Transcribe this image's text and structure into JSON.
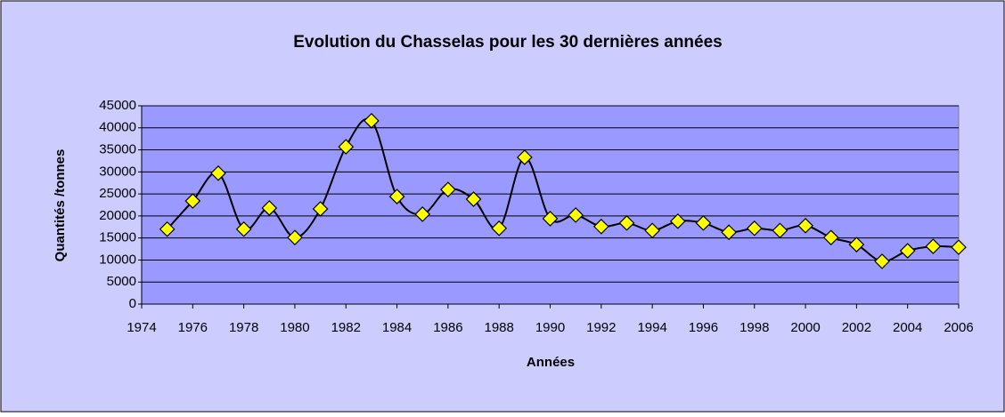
{
  "chart_data": {
    "type": "line",
    "title": "Evolution du Chasselas pour les 30 dernières années",
    "xlabel": "Années",
    "ylabel": "Quantités /tonnes",
    "x": [
      1975,
      1976,
      1977,
      1978,
      1979,
      1980,
      1981,
      1982,
      1983,
      1984,
      1985,
      1986,
      1987,
      1988,
      1989,
      1990,
      1991,
      1992,
      1993,
      1994,
      1995,
      1996,
      1997,
      1998,
      1999,
      2000,
      2001,
      2002,
      2003,
      2004,
      2005,
      2006
    ],
    "series": [
      {
        "name": "Quantités",
        "color": "#000000",
        "marker_color": "#ffff00",
        "values": [
          17000,
          23400,
          29700,
          17000,
          21800,
          15100,
          21600,
          35700,
          41600,
          24400,
          20400,
          26000,
          23800,
          17200,
          33300,
          19400,
          20200,
          17600,
          18400,
          16700,
          18800,
          18400,
          16300,
          17200,
          16700,
          17800,
          15100,
          13500,
          9700,
          12100,
          13100,
          12900
        ]
      }
    ],
    "xlim": [
      1974,
      2006
    ],
    "xticks": [
      1974,
      1976,
      1978,
      1980,
      1982,
      1984,
      1986,
      1988,
      1990,
      1992,
      1994,
      1996,
      1998,
      2000,
      2002,
      2004,
      2006
    ],
    "ylim": [
      0,
      45000
    ],
    "yticks": [
      0,
      5000,
      10000,
      15000,
      20000,
      25000,
      30000,
      35000,
      40000,
      45000
    ],
    "grid": true
  }
}
